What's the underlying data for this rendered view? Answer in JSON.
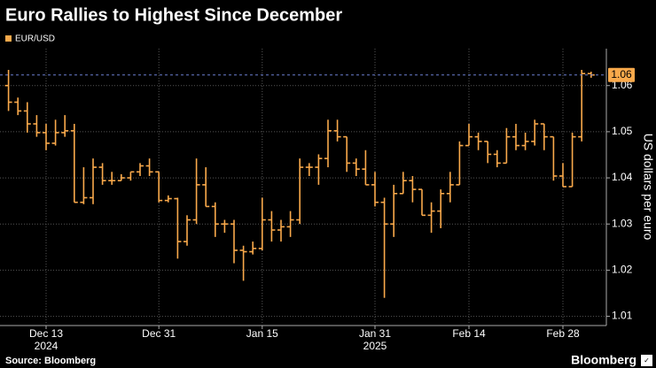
{
  "chart_data": {
    "type": "ohlc",
    "title": "Euro Rallies to Highest Since December",
    "series": [
      {
        "name": "EUR/USD",
        "color": "#f9a94b",
        "open": [
          1.06,
          1.0564,
          1.0545,
          1.0517,
          1.0498,
          1.0475,
          1.0498,
          1.0502,
          1.0347,
          1.0357,
          1.0423,
          1.0394,
          1.0394,
          1.04,
          1.0413,
          1.0426,
          1.0413,
          1.0351,
          1.0355,
          1.0262,
          1.0309,
          1.0385,
          1.0338,
          1.03,
          1.03,
          1.0243,
          1.024,
          1.0247,
          1.0309,
          1.0287,
          1.0294,
          1.0309,
          1.0423,
          1.0423,
          1.0442,
          1.0502,
          1.0489,
          1.0432,
          1.0419,
          1.0385,
          1.0347,
          1.03,
          1.0366,
          1.0394,
          1.0375,
          1.0319,
          1.0328,
          1.0366,
          1.0385,
          1.047,
          1.0489,
          1.0479,
          1.0451,
          1.0432,
          1.0489,
          1.047,
          1.0479,
          1.0517,
          1.0489,
          1.0404,
          1.0381,
          1.0489,
          1.0626
        ],
        "high": [
          1.0634,
          1.0574,
          1.0564,
          1.0536,
          1.0517,
          1.0526,
          1.0536,
          1.0517,
          1.0423,
          1.0442,
          1.0432,
          1.0413,
          1.0408,
          1.0413,
          1.0432,
          1.0442,
          1.0413,
          1.0362,
          1.0357,
          1.0319,
          1.0442,
          1.0423,
          1.0347,
          1.0309,
          1.0309,
          1.0253,
          1.0262,
          1.0357,
          1.0328,
          1.0309,
          1.0328,
          1.0442,
          1.0432,
          1.0451,
          1.0526,
          1.0526,
          1.0489,
          1.0442,
          1.046,
          1.0413,
          1.0357,
          1.0385,
          1.0413,
          1.0404,
          1.0375,
          1.0347,
          1.0375,
          1.0413,
          1.0479,
          1.0517,
          1.0498,
          1.0479,
          1.046,
          1.0508,
          1.0517,
          1.0498,
          1.0526,
          1.0517,
          1.0489,
          1.0432,
          1.0498,
          1.0634,
          1.063
        ],
        "low": [
          1.0545,
          1.0536,
          1.0498,
          1.0489,
          1.046,
          1.047,
          1.0489,
          1.0347,
          1.0343,
          1.0343,
          1.0385,
          1.0385,
          1.0394,
          1.0394,
          1.0404,
          1.0404,
          1.0347,
          1.0347,
          1.0225,
          1.0253,
          1.03,
          1.0338,
          1.0272,
          1.0281,
          1.0215,
          1.0177,
          1.0234,
          1.0243,
          1.0262,
          1.0262,
          1.0272,
          1.03,
          1.0404,
          1.0385,
          1.0423,
          1.0479,
          1.0413,
          1.0404,
          1.0385,
          1.0338,
          1.014,
          1.0272,
          1.0366,
          1.0347,
          1.0319,
          1.0281,
          1.0291,
          1.0347,
          1.0385,
          1.047,
          1.046,
          1.0432,
          1.0423,
          1.0432,
          1.046,
          1.046,
          1.047,
          1.046,
          1.0394,
          1.0381,
          1.0381,
          1.0479,
          1.0617
        ],
        "close": [
          1.0564,
          1.0545,
          1.0517,
          1.0498,
          1.0475,
          1.0498,
          1.0502,
          1.0347,
          1.0357,
          1.0423,
          1.0394,
          1.0394,
          1.04,
          1.0413,
          1.0426,
          1.0413,
          1.0351,
          1.0355,
          1.0262,
          1.0309,
          1.0385,
          1.0338,
          1.03,
          1.03,
          1.0243,
          1.024,
          1.0247,
          1.0309,
          1.0287,
          1.0294,
          1.0309,
          1.0423,
          1.0423,
          1.0442,
          1.0502,
          1.0489,
          1.0432,
          1.0419,
          1.0385,
          1.0347,
          1.03,
          1.0366,
          1.0394,
          1.0375,
          1.0319,
          1.0328,
          1.0366,
          1.0385,
          1.047,
          1.0489,
          1.0479,
          1.0451,
          1.0432,
          1.0489,
          1.047,
          1.0479,
          1.0517,
          1.0489,
          1.0404,
          1.0381,
          1.0489,
          1.0626,
          1.0623
        ]
      }
    ],
    "categories": [
      null,
      null,
      null,
      null,
      "Dec 13",
      null,
      null,
      null,
      null,
      null,
      null,
      null,
      null,
      null,
      null,
      null,
      "Dec 31",
      null,
      null,
      null,
      null,
      null,
      null,
      null,
      null,
      null,
      null,
      "Jan 15",
      null,
      null,
      null,
      null,
      null,
      null,
      null,
      null,
      null,
      null,
      null,
      "Jan 31",
      null,
      null,
      null,
      null,
      null,
      null,
      null,
      null,
      null,
      "Feb 14",
      null,
      null,
      null,
      null,
      null,
      null,
      null,
      null,
      null,
      "Feb 28",
      null,
      null,
      null
    ],
    "category_years": [
      null,
      null,
      null,
      null,
      "2024",
      null,
      null,
      null,
      null,
      null,
      null,
      null,
      null,
      null,
      null,
      null,
      null,
      null,
      null,
      null,
      null,
      null,
      null,
      null,
      null,
      null,
      null,
      null,
      null,
      null,
      null,
      null,
      null,
      null,
      null,
      null,
      null,
      null,
      null,
      "2025",
      null,
      null,
      null,
      null,
      null,
      null,
      null,
      null,
      null,
      null,
      null,
      null,
      null,
      null,
      null,
      null,
      null,
      null,
      null,
      null,
      null,
      null,
      null
    ],
    "ylim": [
      1.008,
      1.068
    ],
    "yticks": [
      1.01,
      1.02,
      1.03,
      1.04,
      1.05,
      1.06
    ],
    "y_axis_side": "right",
    "ylabel": "US dollars per euro",
    "last_value_label": "1.06",
    "grid": true,
    "source": "Source: Bloomberg",
    "brand": "Bloomberg"
  }
}
